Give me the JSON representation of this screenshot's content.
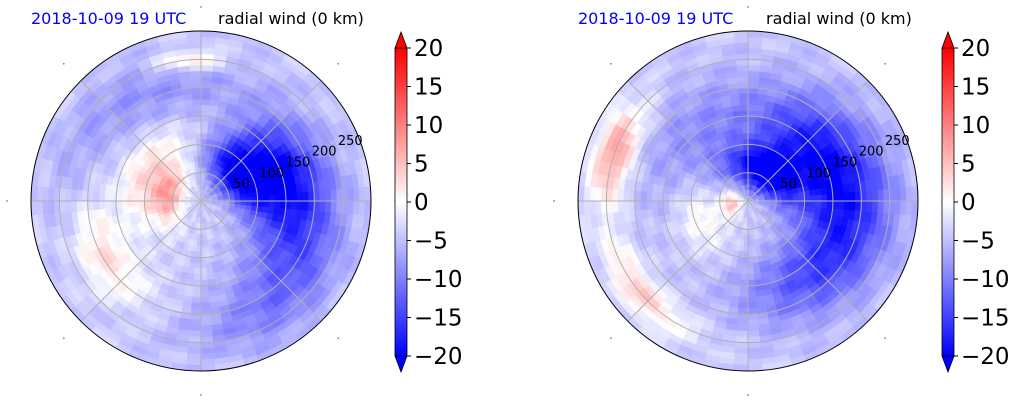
{
  "chart_data": [
    {
      "type": "heatmap",
      "projection": "polar",
      "title_left": "2018-10-09 19 UTC",
      "title_right": "radial wind (0 km)",
      "title_left_color": "#0000ff",
      "radial_ticks": [
        50,
        100,
        150,
        200,
        250
      ],
      "grid": true,
      "colorbar": {
        "ticks": [
          20,
          15,
          10,
          5,
          0,
          -5,
          -10,
          -15,
          -20
        ],
        "tick_labels": [
          "20",
          "15",
          "10",
          "5",
          "0",
          "−5",
          "−10",
          "−15",
          "−20"
        ],
        "range": [
          -20,
          20
        ],
        "colormap": "bwr",
        "extend": "both"
      },
      "blobs": [
        {
          "r": 80,
          "theta": 40,
          "value": -19,
          "sr": 45,
          "st": 45
        },
        {
          "r": 130,
          "theta": 25,
          "value": -15,
          "sr": 60,
          "st": 35
        },
        {
          "r": 180,
          "theta": 5,
          "value": -11,
          "sr": 70,
          "st": 45
        },
        {
          "r": 160,
          "theta": -25,
          "value": -9,
          "sr": 70,
          "st": 45
        },
        {
          "r": 230,
          "theta": -55,
          "value": -9,
          "sr": 60,
          "st": 40
        },
        {
          "r": 60,
          "theta": 170,
          "value": 7,
          "sr": 30,
          "st": 50
        },
        {
          "r": 110,
          "theta": 150,
          "value": 3,
          "sr": 40,
          "st": 50
        },
        {
          "r": 210,
          "theta": 110,
          "value": -8,
          "sr": 60,
          "st": 45
        },
        {
          "r": 200,
          "theta": -150,
          "value": 3,
          "sr": 50,
          "st": 30
        },
        {
          "r": 240,
          "theta": 175,
          "value": -6,
          "sr": 40,
          "st": 60
        },
        {
          "r": 250,
          "theta": 95,
          "value": 4,
          "sr": 20,
          "st": 15
        }
      ]
    },
    {
      "type": "heatmap",
      "projection": "polar",
      "title_left": "2018-10-09 19 UTC",
      "title_right": "radial wind (0 km)",
      "title_left_color": "#0000ff",
      "radial_ticks": [
        50,
        100,
        150,
        200,
        250
      ],
      "grid": true,
      "colorbar": {
        "ticks": [
          20,
          15,
          10,
          5,
          0,
          -5,
          -10,
          -15,
          -20
        ],
        "tick_labels": [
          "20",
          "15",
          "10",
          "5",
          "0",
          "−5",
          "−10",
          "−15",
          "−20"
        ],
        "range": [
          -20,
          20
        ],
        "colormap": "bwr",
        "extend": "both"
      },
      "blobs": [
        {
          "r": 60,
          "theta": 60,
          "value": -21,
          "sr": 40,
          "st": 60
        },
        {
          "r": 130,
          "theta": 35,
          "value": -15,
          "sr": 70,
          "st": 45
        },
        {
          "r": 190,
          "theta": 0,
          "value": -13,
          "sr": 80,
          "st": 55
        },
        {
          "r": 160,
          "theta": -50,
          "value": -11,
          "sr": 70,
          "st": 50
        },
        {
          "r": 140,
          "theta": 120,
          "value": -9,
          "sr": 90,
          "st": 60
        },
        {
          "r": 250,
          "theta": 160,
          "value": 8,
          "sr": 35,
          "st": 20
        },
        {
          "r": 250,
          "theta": -140,
          "value": 4,
          "sr": 30,
          "st": 25
        },
        {
          "r": 30,
          "theta": -170,
          "value": 5,
          "sr": 20,
          "st": 40
        },
        {
          "r": 90,
          "theta": -160,
          "value": 1,
          "sr": 40,
          "st": 40
        }
      ]
    }
  ]
}
